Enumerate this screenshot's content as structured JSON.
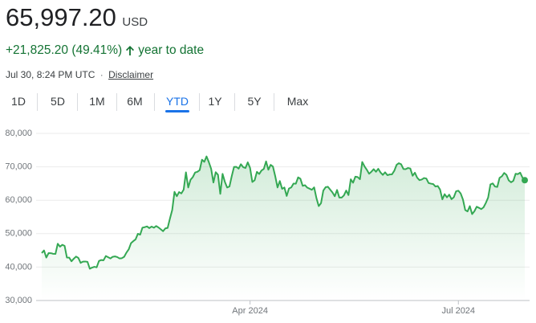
{
  "header": {
    "price": "65,997.20",
    "currency": "USD",
    "change": "+21,825.20 (49.41%)",
    "period": "year to date",
    "timestamp": "Jul 30, 8:24 PM UTC",
    "separator": "·",
    "disclaimer": "Disclaimer",
    "tabs": [
      "1D",
      "5D",
      "1M",
      "6M",
      "YTD",
      "1Y",
      "5Y",
      "Max"
    ],
    "selected_tab": "YTD"
  },
  "chart_data": {
    "type": "line",
    "color": "#34a853",
    "grid": true,
    "ylim": [
      30000,
      80000
    ],
    "yticks": [
      {
        "value": 30000,
        "label": "30,000"
      },
      {
        "value": 40000,
        "label": "40,000"
      },
      {
        "value": 50000,
        "label": "50,000"
      },
      {
        "value": 60000,
        "label": "60,000"
      },
      {
        "value": 70000,
        "label": "70,000"
      },
      {
        "value": 80000,
        "label": "80,000"
      }
    ],
    "categories": [
      null,
      null,
      null,
      null,
      null,
      null,
      null,
      null,
      null,
      null,
      null,
      null,
      null,
      null,
      null,
      null,
      null,
      null,
      null,
      null,
      null,
      null,
      null,
      null,
      null,
      null,
      null,
      null,
      null,
      null,
      null,
      null,
      null,
      null,
      null,
      null,
      null,
      null,
      null,
      null,
      null,
      null,
      null,
      null,
      null,
      null,
      null,
      null,
      null,
      null,
      null,
      null,
      null,
      null,
      null,
      null,
      null,
      null,
      null,
      null,
      null,
      null,
      null,
      null,
      null,
      null,
      null,
      null,
      null,
      null,
      null,
      null,
      null,
      null,
      null,
      null,
      null,
      null,
      null,
      null,
      null,
      null,
      null,
      null,
      null,
      null,
      null,
      null,
      null,
      null,
      null,
      "Apr 2024",
      null,
      null,
      null,
      null,
      null,
      null,
      null,
      null,
      null,
      null,
      null,
      null,
      null,
      null,
      null,
      null,
      null,
      null,
      null,
      null,
      null,
      null,
      null,
      null,
      null,
      null,
      null,
      null,
      null,
      null,
      null,
      null,
      null,
      null,
      null,
      null,
      null,
      null,
      null,
      null,
      null,
      null,
      null,
      null,
      null,
      null,
      null,
      null,
      null,
      null,
      null,
      null,
      null,
      null,
      null,
      null,
      null,
      null,
      null,
      null,
      null,
      null,
      null,
      null,
      null,
      null,
      null,
      null,
      null,
      null,
      null,
      null,
      null,
      null,
      null,
      null,
      null,
      null,
      null,
      null,
      null,
      null,
      null,
      null,
      null,
      null,
      null,
      null,
      null,
      null,
      "Jul 2024",
      null,
      null,
      null,
      null,
      null,
      null,
      null,
      null,
      null,
      null,
      null,
      null,
      null,
      null,
      null,
      null,
      null,
      null,
      null,
      null,
      null,
      null,
      null,
      null,
      null,
      null,
      null,
      null,
      null
    ],
    "values": [
      44200,
      44970,
      42850,
      44180,
      44160,
      43970,
      43950,
      46970,
      46120,
      46660,
      46340,
      42850,
      42840,
      41730,
      42510,
      43150,
      42740,
      41260,
      41620,
      41670,
      41560,
      39510,
      39850,
      40080,
      39930,
      41820,
      42120,
      42030,
      43300,
      42940,
      42580,
      43080,
      43190,
      43000,
      42580,
      42660,
      43080,
      44320,
      45300,
      47150,
      47770,
      48290,
      49960,
      49700,
      51800,
      51940,
      52160,
      51660,
      52120,
      51780,
      52280,
      51840,
      51300,
      50730,
      51570,
      51730,
      54480,
      57090,
      62500,
      61200,
      62440,
      62030,
      63170,
      68330,
      63800,
      66110,
      66930,
      68300,
      68500,
      69020,
      72120,
      71480,
      73100,
      71400,
      69400,
      65300,
      68390,
      67600,
      61900,
      67900,
      65500,
      63800,
      64100,
      67200,
      69960,
      69990,
      69450,
      70780,
      69900,
      69650,
      71330,
      69700,
      65460,
      65980,
      68500,
      67840,
      68900,
      69360,
      71620,
      69140,
      70590,
      70060,
      67200,
      63820,
      65740,
      63420,
      63810,
      61280,
      63510,
      63840,
      64990,
      64940,
      66840,
      66410,
      64290,
      64500,
      63770,
      63460,
      63120,
      63840,
      60640,
      58250,
      59120,
      62890,
      63890,
      64030,
      63160,
      62330,
      61190,
      63070,
      60790,
      60790,
      61450,
      62900,
      61550,
      66270,
      65230,
      67050,
      66940,
      66280,
      71450,
      70140,
      69120,
      67930,
      68530,
      69290,
      68520,
      69400,
      68300,
      67590,
      68350,
      67490,
      67710,
      67750,
      68800,
      70570,
      71080,
      70760,
      69340,
      69310,
      69650,
      69500,
      67320,
      68240,
      66750,
      66010,
      66190,
      66640,
      66490,
      65140,
      64960,
      64830,
      64100,
      64250,
      63180,
      60270,
      61800,
      60860,
      61670,
      60320,
      60890,
      62680,
      62850,
      62030,
      60200,
      57060,
      56660,
      58230,
      55850,
      56710,
      58050,
      57720,
      57340,
      57890,
      59200,
      60800,
      64720,
      65040,
      64090,
      63990,
      66710,
      67150,
      68160,
      67580,
      65930,
      65370,
      65800,
      67910,
      67810,
      68250,
      66780,
      65997.2
    ]
  }
}
